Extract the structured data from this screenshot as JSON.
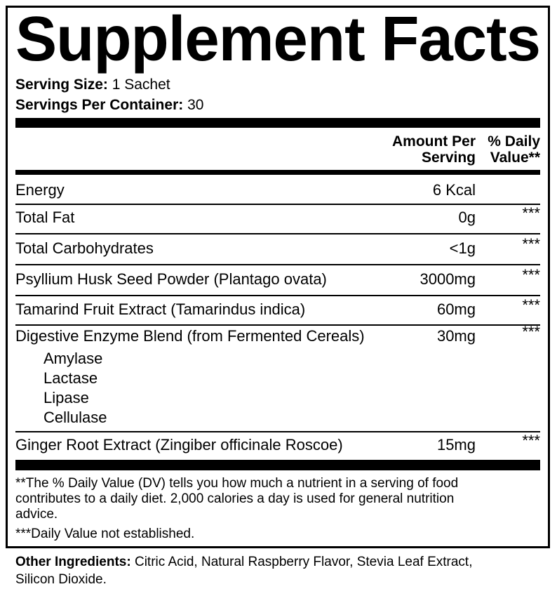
{
  "title": "Supplement Facts",
  "serving_size": {
    "label": "Serving Size:",
    "value": "1 Sachet"
  },
  "servings_per_container": {
    "label": "Servings Per Container:",
    "value": "30"
  },
  "columns": {
    "amount": [
      "Amount Per",
      "Serving"
    ],
    "dv": [
      "% Daily",
      "Value**"
    ]
  },
  "rows": [
    {
      "name": "Energy",
      "amount": "6 Kcal",
      "dv": ""
    },
    {
      "name": "Total Fat",
      "amount": "0g",
      "dv": "***"
    },
    {
      "name": "Total Carbohydrates",
      "amount": "<1g",
      "dv": "***"
    },
    {
      "name": "Psyllium Husk Seed Powder (Plantago ovata)",
      "amount": "3000mg",
      "dv": "***"
    },
    {
      "name": "Tamarind Fruit Extract (Tamarindus indica)",
      "amount": "60mg",
      "dv": "***"
    },
    {
      "name": "Digestive Enzyme Blend (from Fermented Cereals)",
      "amount": "30mg",
      "dv": "***",
      "sub": [
        "Amylase",
        "Lactase",
        "Lipase",
        "Cellulase"
      ]
    },
    {
      "name": "Ginger Root Extract (Zingiber officinale Roscoe)",
      "amount": "15mg",
      "dv": "***"
    }
  ],
  "footnotes": [
    "**The % Daily Value (DV) tells you how much a nutrient in a serving of food",
    "contributes to a daily diet. 2,000 calories a day is used for general nutrition",
    "advice.",
    "***Daily Value not established."
  ],
  "other_ingredients": {
    "label": "Other Ingredients:",
    "lines": [
      "Citric Acid, Natural Raspberry Flavor, Stevia Leaf Extract,",
      "Silicon Dioxide."
    ]
  }
}
